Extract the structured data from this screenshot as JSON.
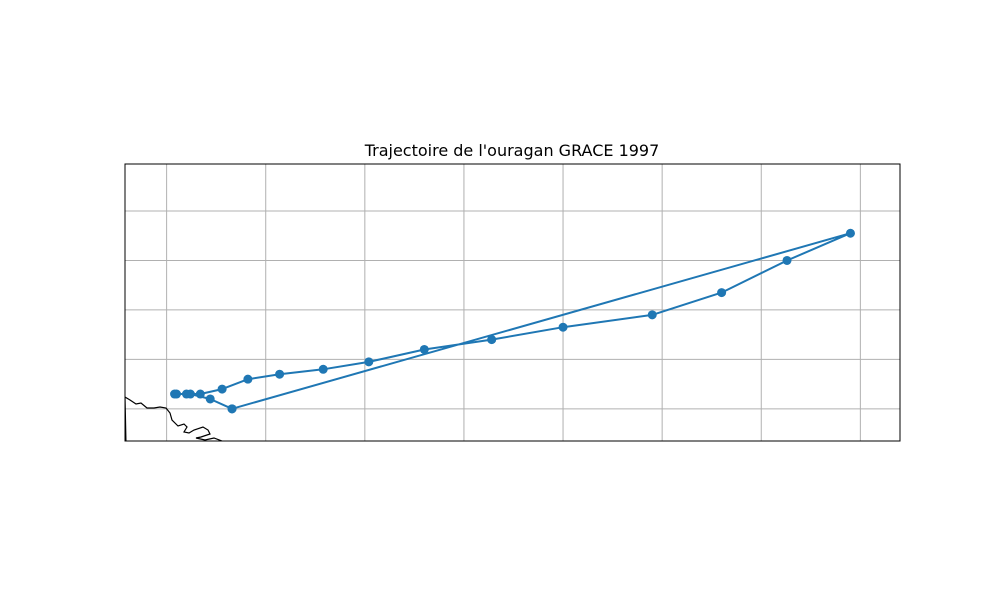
{
  "title": "Trajectoire de l'ouragan GRACE 1997",
  "colors": {
    "track": "#1f77b4",
    "grid": "#b0b0b0",
    "coastline": "#000000",
    "frame": "#000000"
  },
  "map": {
    "lon_range": [
      -77.1,
      -38.0
    ],
    "lat_range": [
      23.7,
      34.9
    ],
    "grid_lons": [
      -75,
      -70,
      -65,
      -60,
      -55,
      -50,
      -45,
      -40
    ],
    "grid_lats": [
      25,
      27,
      29,
      31,
      33
    ],
    "grid": true,
    "coastline": true
  },
  "chart_data": {
    "type": "line",
    "title": "Trajectoire de l'ouragan GRACE 1997",
    "xlabel": "",
    "ylabel": "",
    "xlim": [
      -77.1,
      -38.0
    ],
    "ylim": [
      23.7,
      34.9
    ],
    "grid": true,
    "series": [
      {
        "lon": [
          -71.7,
          -72.8,
          -73.8,
          -74.5,
          -74.6,
          -74.0,
          -73.3,
          -72.2,
          -70.9,
          -69.3,
          -67.1,
          -64.8,
          -62.0,
          -58.6,
          -55.0,
          -50.5,
          -47.0,
          -43.7,
          -40.5,
          -71.7
        ],
        "lat": [
          25.0,
          25.4,
          25.6,
          25.6,
          25.6,
          25.6,
          25.6,
          25.8,
          26.2,
          26.4,
          26.6,
          26.9,
          27.4,
          27.8,
          28.3,
          28.8,
          29.7,
          31.0,
          32.1,
          25.0
        ]
      }
    ]
  }
}
